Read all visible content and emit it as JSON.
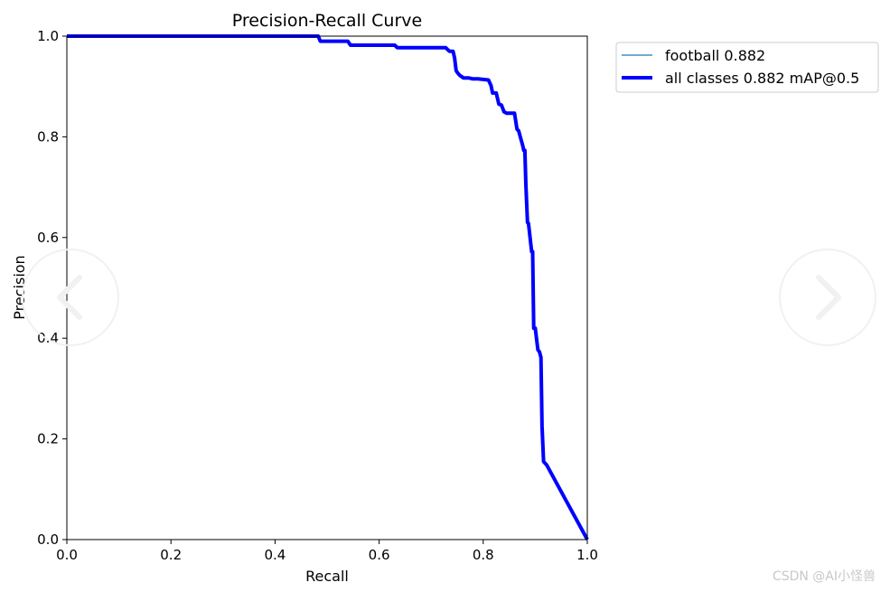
{
  "chart_data": {
    "type": "line",
    "title": "Precision-Recall Curve",
    "xlabel": "Recall",
    "ylabel": "Precision",
    "xlim": [
      0,
      1
    ],
    "ylim": [
      0,
      1
    ],
    "xticks": [
      "0.0",
      "0.2",
      "0.4",
      "0.6",
      "0.8",
      "1.0"
    ],
    "yticks": [
      "0.0",
      "0.2",
      "0.4",
      "0.6",
      "0.8",
      "1.0"
    ],
    "grid": false,
    "legend_position": "outside-top-right",
    "series": [
      {
        "name": "football 0.882",
        "color": "#1f77b4",
        "x": [
          0,
          0.483,
          0.487,
          0.54,
          0.545,
          0.63,
          0.635,
          0.728,
          0.735,
          0.742,
          0.745,
          0.748,
          0.75,
          0.755,
          0.762,
          0.772,
          0.78,
          0.79,
          0.81,
          0.815,
          0.818,
          0.825,
          0.83,
          0.835,
          0.84,
          0.845,
          0.86,
          0.865,
          0.868,
          0.872,
          0.876,
          0.878,
          0.88,
          0.882,
          0.885,
          0.887,
          0.893,
          0.895,
          0.897,
          0.9,
          0.905,
          0.908,
          0.911,
          0.913,
          0.916,
          0.922,
          1.0
        ],
        "y": [
          1.0,
          1.0,
          0.99,
          0.99,
          0.982,
          0.982,
          0.977,
          0.977,
          0.97,
          0.97,
          0.957,
          0.932,
          0.928,
          0.922,
          0.917,
          0.917,
          0.915,
          0.915,
          0.913,
          0.902,
          0.887,
          0.887,
          0.865,
          0.863,
          0.85,
          0.847,
          0.847,
          0.815,
          0.812,
          0.797,
          0.782,
          0.773,
          0.773,
          0.705,
          0.63,
          0.628,
          0.572,
          0.572,
          0.42,
          0.42,
          0.377,
          0.373,
          0.362,
          0.225,
          0.155,
          0.148,
          0.0
        ]
      },
      {
        "name": "all classes 0.882 mAP@0.5",
        "color": "#0000ff",
        "x": [
          0,
          0.483,
          0.487,
          0.54,
          0.545,
          0.63,
          0.635,
          0.728,
          0.735,
          0.742,
          0.745,
          0.748,
          0.75,
          0.755,
          0.762,
          0.772,
          0.78,
          0.79,
          0.81,
          0.815,
          0.818,
          0.825,
          0.83,
          0.835,
          0.84,
          0.845,
          0.86,
          0.865,
          0.868,
          0.872,
          0.876,
          0.878,
          0.88,
          0.882,
          0.885,
          0.887,
          0.893,
          0.895,
          0.897,
          0.9,
          0.905,
          0.908,
          0.911,
          0.913,
          0.916,
          0.922,
          1.0
        ],
        "y": [
          1.0,
          1.0,
          0.99,
          0.99,
          0.982,
          0.982,
          0.977,
          0.977,
          0.97,
          0.97,
          0.957,
          0.932,
          0.928,
          0.922,
          0.917,
          0.917,
          0.915,
          0.915,
          0.913,
          0.902,
          0.887,
          0.887,
          0.865,
          0.863,
          0.85,
          0.847,
          0.847,
          0.815,
          0.812,
          0.797,
          0.782,
          0.773,
          0.773,
          0.705,
          0.63,
          0.628,
          0.572,
          0.572,
          0.42,
          0.42,
          0.377,
          0.373,
          0.362,
          0.225,
          0.155,
          0.148,
          0.0
        ]
      }
    ]
  },
  "watermark": "CSDN @AI小怪兽",
  "nav": {
    "prev_icon": "chevron-left-icon",
    "next_icon": "chevron-right-icon"
  }
}
